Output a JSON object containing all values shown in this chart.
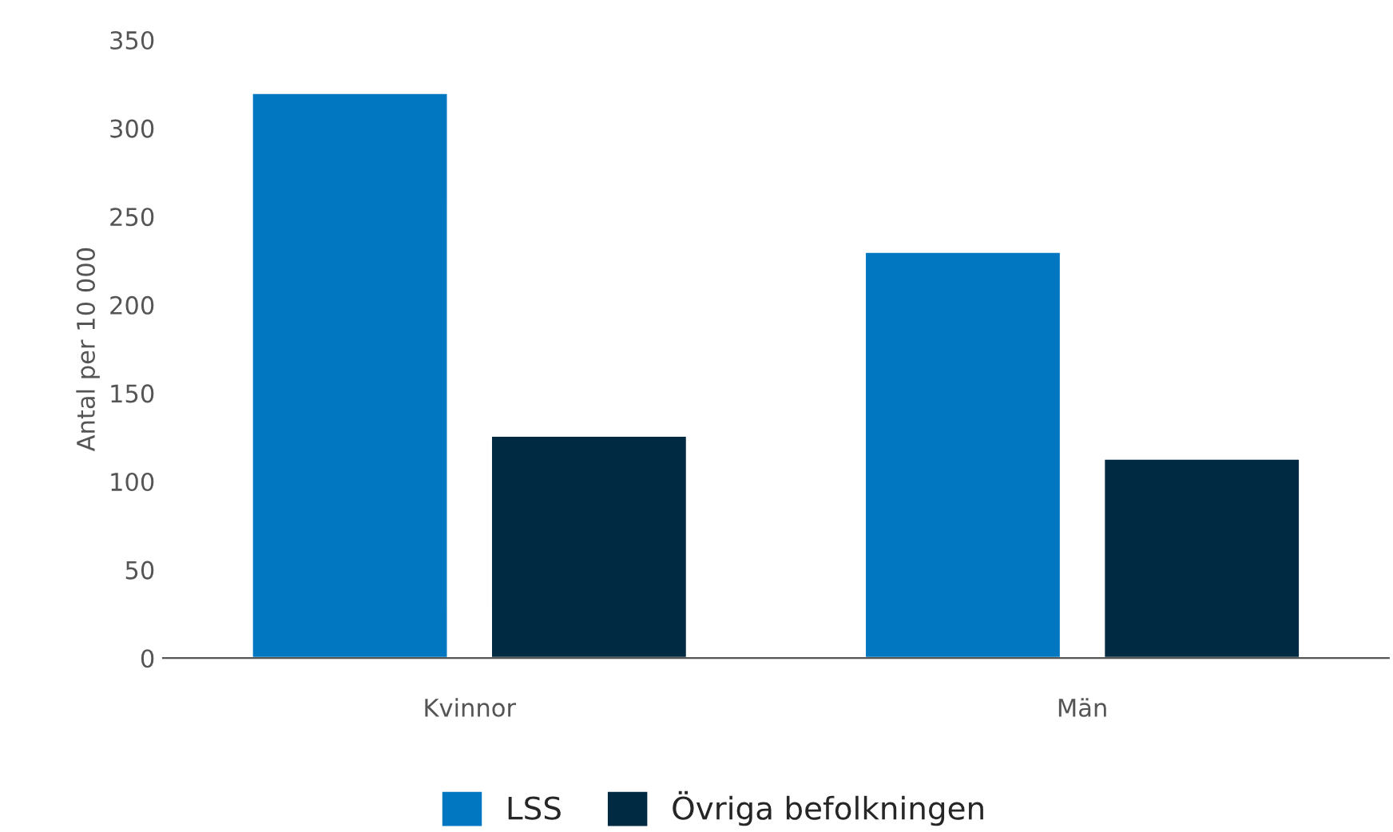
{
  "chart_data": {
    "type": "bar",
    "ylabel": "Antal per 10 000",
    "categories": [
      "Kvinnor",
      "Män"
    ],
    "series": [
      {
        "name": "LSS",
        "color": "#0077c0",
        "values": [
          320,
          230
        ]
      },
      {
        "name": "Övriga befolkningen",
        "color": "#002a42",
        "values": [
          126,
          113
        ]
      }
    ],
    "ylim": [
      0,
      350
    ],
    "yticks": [
      0,
      50,
      100,
      150,
      200,
      250,
      300,
      350
    ],
    "grid": false,
    "legend": "bottom"
  }
}
